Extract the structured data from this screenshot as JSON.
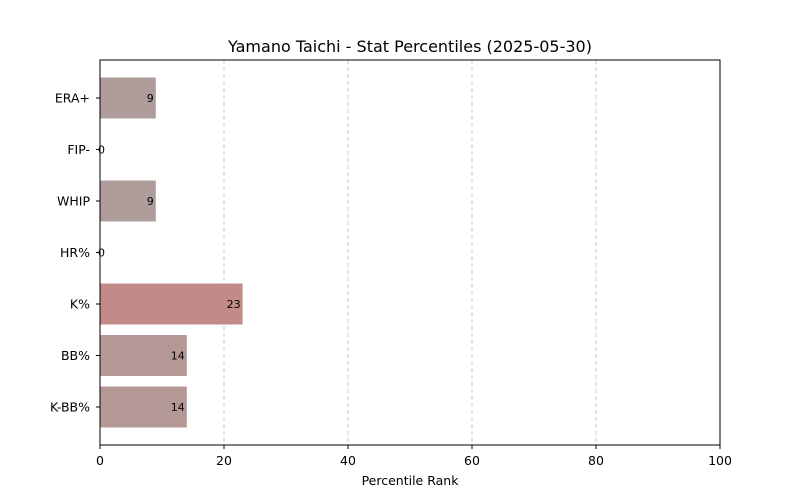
{
  "chart_data": {
    "type": "bar",
    "orientation": "horizontal",
    "title": "Yamano Taichi - Stat Percentiles (2025-05-30)",
    "xlabel": "Percentile Rank",
    "ylabel": "",
    "xlim": [
      0,
      100
    ],
    "xticks": [
      0,
      20,
      40,
      60,
      80,
      100
    ],
    "grid": "x-dashed",
    "categories": [
      "ERA+",
      "FIP-",
      "WHIP",
      "HR%",
      "K%",
      "BB%",
      "K-BB%"
    ],
    "values": [
      9,
      0,
      9,
      0,
      23,
      14,
      14
    ],
    "data_labels": [
      "9",
      "0",
      "9",
      "0",
      "23",
      "14",
      "14"
    ],
    "colors": [
      "#af9d9c",
      "#aa9fa0",
      "#af9d9c",
      "#aa9fa0",
      "#c28b88",
      "#b39896",
      "#b39896"
    ]
  }
}
